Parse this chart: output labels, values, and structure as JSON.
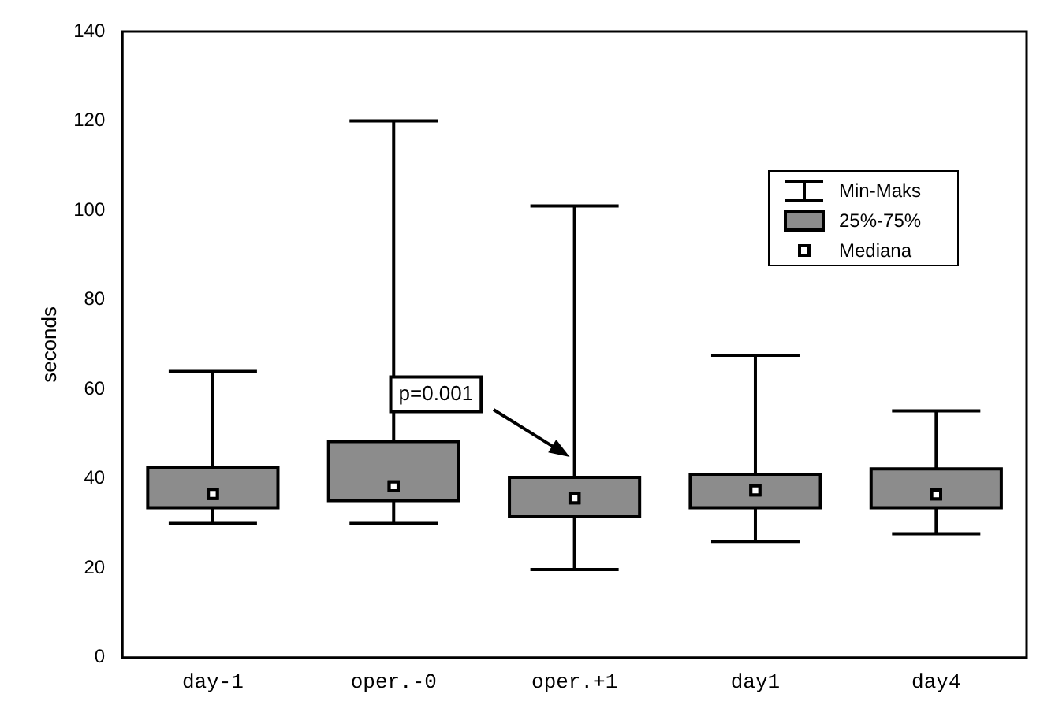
{
  "chart_data": {
    "type": "box",
    "ylabel": "seconds",
    "categories": [
      "day-1",
      "oper.-0",
      "oper.+1",
      "day1",
      "day4"
    ],
    "boxes": [
      {
        "low": 30,
        "q1": 33.5,
        "median": 36.6,
        "q3": 42.4,
        "high": 64
      },
      {
        "low": 30,
        "q1": 35.1,
        "median": 38.3,
        "q3": 48.3,
        "high": 120
      },
      {
        "low": 19.7,
        "q1": 31.5,
        "median": 35.6,
        "q3": 40.3,
        "high": 101
      },
      {
        "low": 26,
        "q1": 33.5,
        "median": 37.4,
        "q3": 41,
        "high": 67.6
      },
      {
        "low": 27.7,
        "q1": 33.5,
        "median": 36.5,
        "q3": 42.2,
        "high": 55.2
      }
    ],
    "color": "#8c8c8c",
    "ylim": [
      0,
      140
    ],
    "yticks": [
      0,
      20,
      40,
      60,
      80,
      100,
      120,
      140
    ],
    "grid": false,
    "annotations": [
      "p=0.001",
      "Min-Maks",
      "25%-75%",
      "Mediana"
    ]
  }
}
